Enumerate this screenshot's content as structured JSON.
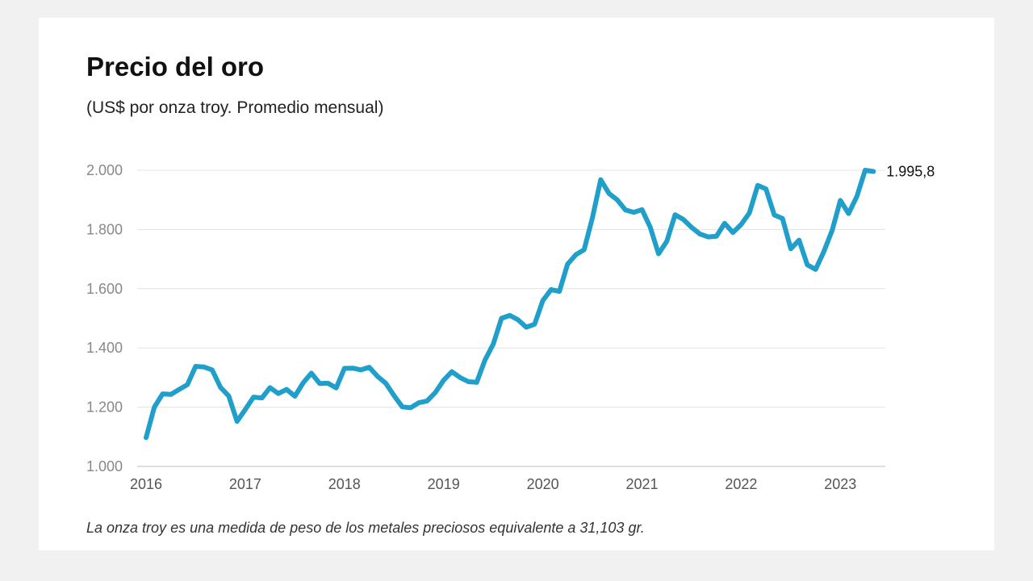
{
  "chart_data": {
    "type": "line",
    "title": "Precio del oro",
    "subtitle": "(US$ por onza troy. Promedio mensual)",
    "note": "La onza troy es una medida de peso de los metales preciosos equivalente a 31,103 gr.",
    "xlabel": "",
    "ylabel": "",
    "ylim": [
      1000,
      2000
    ],
    "yticks": [
      1000,
      1200,
      1400,
      1600,
      1800,
      2000
    ],
    "ytick_labels": [
      "1.000",
      "1.200",
      "1.400",
      "1.600",
      "1.800",
      "2.000"
    ],
    "xticks": [
      "2016",
      "2017",
      "2018",
      "2019",
      "2020",
      "2021",
      "2022",
      "2023"
    ],
    "grid": "horizontal",
    "line_color": "#1f9fca",
    "end_label": "1.995,8",
    "series": [
      {
        "x_start": "2016-01",
        "frequency": "monthly",
        "values": [
          1097,
          1200,
          1245,
          1243,
          1260,
          1276,
          1338,
          1336,
          1326,
          1267,
          1238,
          1152,
          1192,
          1234,
          1231,
          1266,
          1246,
          1260,
          1237,
          1282,
          1315,
          1280,
          1281,
          1265,
          1331,
          1332,
          1326,
          1335,
          1304,
          1281,
          1239,
          1201,
          1198,
          1215,
          1221,
          1250,
          1291,
          1320,
          1300,
          1286,
          1284,
          1359,
          1413,
          1500,
          1510,
          1495,
          1470,
          1480,
          1560,
          1597,
          1591,
          1683,
          1715,
          1732,
          1840,
          1968,
          1922,
          1900,
          1866,
          1858,
          1867,
          1808,
          1718,
          1760,
          1850,
          1834,
          1807,
          1785,
          1775,
          1777,
          1821,
          1790,
          1817,
          1856,
          1949,
          1937,
          1849,
          1837,
          1735,
          1764,
          1681,
          1665,
          1725,
          1797,
          1898,
          1854,
          1912,
          2000,
          1995.8
        ]
      }
    ]
  }
}
